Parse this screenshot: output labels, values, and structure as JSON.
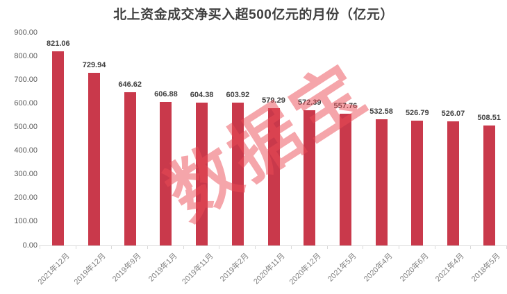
{
  "title": "北上资金成交净买入超500亿元的月份（亿元）",
  "watermark": {
    "text": "数据宝",
    "color": "rgba(235,75,85,0.5)"
  },
  "colors": {
    "bar": "#C9394B",
    "title_text": "#404040",
    "value_label": "#404040",
    "y_axis_label": "#595959",
    "x_axis_label": "#808080",
    "axis_line": "#D9D9D9",
    "background": "#FFFFFF"
  },
  "chart_data": {
    "type": "bar",
    "title": "北上资金成交净买入超500亿元的月份（亿元）",
    "categories": [
      "2021年12月",
      "2019年12月",
      "2019年9月",
      "2019年1月",
      "2019年11月",
      "2019年2月",
      "2020年11月",
      "2020年12月",
      "2021年5月",
      "2020年4月",
      "2020年6月",
      "2021年4月",
      "2018年5月"
    ],
    "values": [
      821.06,
      729.94,
      646.62,
      606.88,
      604.38,
      603.92,
      579.29,
      572.39,
      557.76,
      532.58,
      526.79,
      526.07,
      508.51
    ],
    "value_labels": [
      "821.06",
      "729.94",
      "646.62",
      "606.88",
      "604.38",
      "603.92",
      "579.29",
      "572.39",
      "557.76",
      "532.58",
      "526.79",
      "526.07",
      "508.51"
    ],
    "xlabel": "",
    "ylabel": "",
    "ylim": [
      0,
      900
    ],
    "ytick_step": 100,
    "ytick_labels": [
      "0.00",
      "100.00",
      "200.00",
      "300.00",
      "400.00",
      "500.00",
      "600.00",
      "700.00",
      "800.00",
      "900.00"
    ],
    "grid": false,
    "legend": false,
    "data_labels": true,
    "bar_color": "#C9394B"
  }
}
